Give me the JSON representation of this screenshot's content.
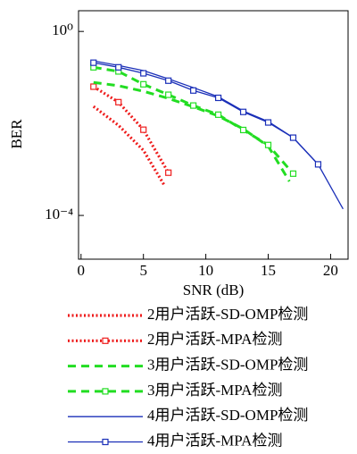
{
  "chart_data": {
    "type": "line",
    "x_label": "SNR (dB)",
    "y_label": "BER",
    "xlim": [
      -0.2,
      21.4
    ],
    "xticks": [
      0,
      5,
      10,
      15,
      20
    ],
    "ylim": [
      1.12e-05,
      2.82
    ],
    "y_log": true,
    "yticks": [
      {
        "value": 1,
        "label": "10⁰"
      },
      {
        "value": 0.0001,
        "label": "10⁻⁴"
      }
    ],
    "series": [
      {
        "name": "2用户活跃-SD-OMP检测",
        "color": "#ee1c1c",
        "dash": "dotted",
        "marker": "none",
        "x": [
          1,
          3,
          5,
          6.7
        ],
        "values": [
          0.0234,
          0.0091,
          0.0026,
          0.00044
        ]
      },
      {
        "name": "2用户活跃-MPA检测",
        "color": "#ee1c1c",
        "dash": "dotted",
        "marker": "square",
        "x": [
          1,
          3,
          5,
          7
        ],
        "values": [
          0.063,
          0.029,
          0.0073,
          0.00085
        ]
      },
      {
        "name": "3用户活跃-SD-OMP检测",
        "color": "#22dd22",
        "dash": "dashed",
        "marker": "none",
        "x": [
          1,
          3,
          5,
          7,
          9,
          11,
          13,
          15,
          16.7
        ],
        "values": [
          0.078,
          0.066,
          0.05,
          0.035,
          0.023,
          0.0145,
          0.0076,
          0.0032,
          0.00055
        ]
      },
      {
        "name": "3用户活跃-MPA检测",
        "color": "#22dd22",
        "dash": "dashed",
        "marker": "square",
        "x": [
          1,
          3,
          5,
          7,
          9,
          11,
          13,
          15,
          17
        ],
        "values": [
          0.166,
          0.135,
          0.071,
          0.042,
          0.0245,
          0.0155,
          0.0072,
          0.0034,
          0.00081
        ]
      },
      {
        "name": "4用户活跃-SD-OMP检测",
        "color": "#1a2fb8",
        "dash": "solid",
        "marker": "none",
        "x": [
          1,
          3,
          5,
          7,
          9,
          11,
          13,
          15,
          17,
          19,
          21
        ],
        "values": [
          0.229,
          0.182,
          0.141,
          0.093,
          0.06,
          0.038,
          0.0186,
          0.011,
          0.0049,
          0.00129,
          0.000138
        ]
      },
      {
        "name": "4用户活跃-MPA检测",
        "color": "#1a2fb8",
        "dash": "solid",
        "marker": "square",
        "x": [
          1,
          3,
          5,
          7,
          9,
          11,
          13,
          15,
          17,
          19
        ],
        "values": [
          0.209,
          0.166,
          0.123,
          0.085,
          0.052,
          0.036,
          0.0178,
          0.0105,
          0.0049,
          0.00129
        ]
      }
    ]
  }
}
